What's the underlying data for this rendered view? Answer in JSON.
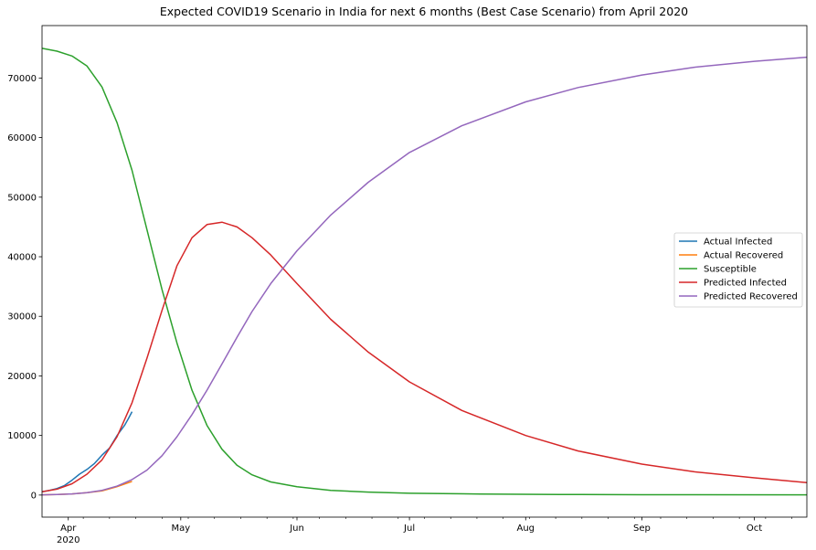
{
  "chart_data": {
    "type": "line",
    "title": "Expected COVID19 Scenario in India for next 6 months (Best Case Scenario) from April 2020",
    "xlabel": "",
    "ylabel": "",
    "x_axis": {
      "type": "date",
      "range": [
        "2020-03-25",
        "2020-10-15"
      ],
      "major_ticks": [
        {
          "date": "2020-04-01",
          "label": "Apr",
          "sublabel": "2020"
        },
        {
          "date": "2020-05-01",
          "label": "May"
        },
        {
          "date": "2020-06-01",
          "label": "Jun"
        },
        {
          "date": "2020-07-01",
          "label": "Jul"
        },
        {
          "date": "2020-08-01",
          "label": "Aug"
        },
        {
          "date": "2020-09-01",
          "label": "Sep"
        },
        {
          "date": "2020-10-01",
          "label": "Oct"
        }
      ]
    },
    "y_axis": {
      "range": [
        -3700,
        78800
      ],
      "ticks": [
        0,
        10000,
        20000,
        30000,
        40000,
        50000,
        60000,
        70000
      ]
    },
    "grid": false,
    "legend": {
      "placement": "center-right",
      "entries": [
        "Actual Infected",
        "Actual Recovered",
        "Susceptible",
        "Predicted Infected",
        "Predicted Recovered"
      ]
    },
    "series": [
      {
        "name": "Actual Infected",
        "color": "#1f77b4",
        "points": [
          [
            "2020-03-25",
            560
          ],
          [
            "2020-03-27",
            800
          ],
          [
            "2020-03-29",
            1100
          ],
          [
            "2020-03-31",
            1600
          ],
          [
            "2020-04-02",
            2500
          ],
          [
            "2020-04-04",
            3500
          ],
          [
            "2020-04-06",
            4300
          ],
          [
            "2020-04-08",
            5300
          ],
          [
            "2020-04-10",
            6700
          ],
          [
            "2020-04-12",
            7900
          ],
          [
            "2020-04-14",
            10000
          ],
          [
            "2020-04-16",
            11700
          ],
          [
            "2020-04-17",
            12800
          ],
          [
            "2020-04-18",
            14000
          ]
        ]
      },
      {
        "name": "Actual Recovered",
        "color": "#ff7f0e",
        "points": [
          [
            "2020-03-25",
            40
          ],
          [
            "2020-03-29",
            100
          ],
          [
            "2020-04-02",
            200
          ],
          [
            "2020-04-06",
            400
          ],
          [
            "2020-04-10",
            700
          ],
          [
            "2020-04-14",
            1400
          ],
          [
            "2020-04-18",
            2300
          ]
        ]
      },
      {
        "name": "Susceptible",
        "color": "#2ca02c",
        "points": [
          [
            "2020-03-25",
            75000
          ],
          [
            "2020-03-29",
            74500
          ],
          [
            "2020-04-02",
            73700
          ],
          [
            "2020-04-06",
            72000
          ],
          [
            "2020-04-10",
            68500
          ],
          [
            "2020-04-14",
            62500
          ],
          [
            "2020-04-18",
            54500
          ],
          [
            "2020-04-22",
            44500
          ],
          [
            "2020-04-26",
            34500
          ],
          [
            "2020-04-30",
            25500
          ],
          [
            "2020-05-04",
            17600
          ],
          [
            "2020-05-08",
            11700
          ],
          [
            "2020-05-12",
            7700
          ],
          [
            "2020-05-16",
            5000
          ],
          [
            "2020-05-20",
            3400
          ],
          [
            "2020-05-25",
            2200
          ],
          [
            "2020-06-01",
            1400
          ],
          [
            "2020-06-10",
            800
          ],
          [
            "2020-06-20",
            500
          ],
          [
            "2020-07-01",
            300
          ],
          [
            "2020-07-20",
            180
          ],
          [
            "2020-08-10",
            100
          ],
          [
            "2020-09-01",
            60
          ],
          [
            "2020-10-15",
            40
          ]
        ]
      },
      {
        "name": "Predicted Infected",
        "color": "#d62728",
        "points": [
          [
            "2020-03-25",
            560
          ],
          [
            "2020-03-29",
            1000
          ],
          [
            "2020-04-02",
            1900
          ],
          [
            "2020-04-06",
            3500
          ],
          [
            "2020-04-10",
            5900
          ],
          [
            "2020-04-14",
            9800
          ],
          [
            "2020-04-18",
            15500
          ],
          [
            "2020-04-22",
            23000
          ],
          [
            "2020-04-26",
            31000
          ],
          [
            "2020-04-30",
            38500
          ],
          [
            "2020-05-04",
            43200
          ],
          [
            "2020-05-08",
            45400
          ],
          [
            "2020-05-12",
            45800
          ],
          [
            "2020-05-16",
            45000
          ],
          [
            "2020-05-20",
            43200
          ],
          [
            "2020-05-25",
            40300
          ],
          [
            "2020-06-01",
            35500
          ],
          [
            "2020-06-10",
            29500
          ],
          [
            "2020-06-20",
            24000
          ],
          [
            "2020-07-01",
            19000
          ],
          [
            "2020-07-15",
            14200
          ],
          [
            "2020-08-01",
            10000
          ],
          [
            "2020-08-15",
            7400
          ],
          [
            "2020-09-01",
            5200
          ],
          [
            "2020-09-15",
            3900
          ],
          [
            "2020-10-01",
            2900
          ],
          [
            "2020-10-15",
            2100
          ]
        ]
      },
      {
        "name": "Predicted Recovered",
        "color": "#9467bd",
        "points": [
          [
            "2020-03-25",
            40
          ],
          [
            "2020-03-29",
            100
          ],
          [
            "2020-04-02",
            200
          ],
          [
            "2020-04-06",
            400
          ],
          [
            "2020-04-10",
            800
          ],
          [
            "2020-04-14",
            1500
          ],
          [
            "2020-04-18",
            2600
          ],
          [
            "2020-04-22",
            4200
          ],
          [
            "2020-04-26",
            6600
          ],
          [
            "2020-04-30",
            9800
          ],
          [
            "2020-05-04",
            13500
          ],
          [
            "2020-05-08",
            17600
          ],
          [
            "2020-05-12",
            22000
          ],
          [
            "2020-05-16",
            26500
          ],
          [
            "2020-05-20",
            30800
          ],
          [
            "2020-05-25",
            35500
          ],
          [
            "2020-06-01",
            41000
          ],
          [
            "2020-06-10",
            47000
          ],
          [
            "2020-06-20",
            52500
          ],
          [
            "2020-07-01",
            57500
          ],
          [
            "2020-07-15",
            62000
          ],
          [
            "2020-08-01",
            66000
          ],
          [
            "2020-08-15",
            68400
          ],
          [
            "2020-09-01",
            70500
          ],
          [
            "2020-09-15",
            71800
          ],
          [
            "2020-10-01",
            72800
          ],
          [
            "2020-10-15",
            73500
          ]
        ]
      }
    ]
  }
}
